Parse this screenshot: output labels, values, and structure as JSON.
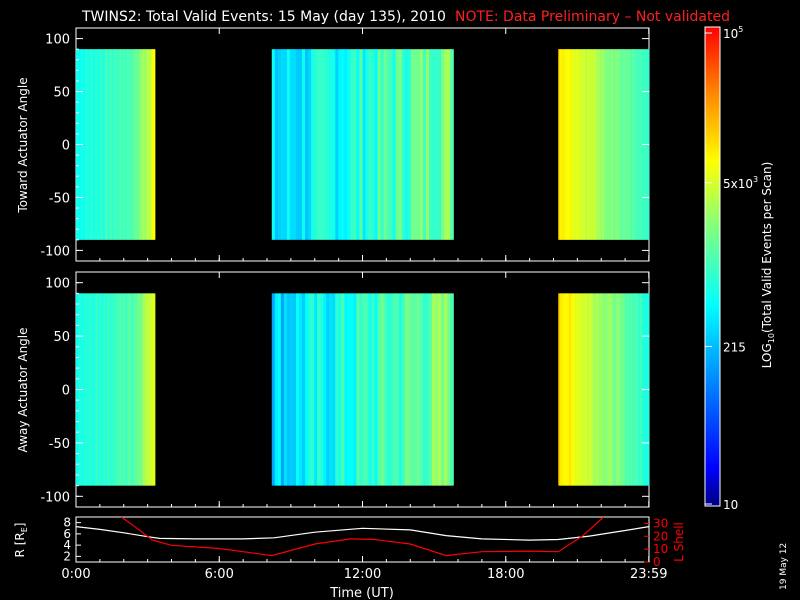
{
  "header": {
    "title": "TWINS2: Total Valid Events: 15 May (day 135), 2010",
    "note": "NOTE: Data Preliminary – Not validated",
    "note_color": "#ff2020"
  },
  "side_stamp": "19 May 12",
  "colorbar": {
    "label_prefix": "LOG",
    "label_sub": "10",
    "label_suffix": "(Total Valid Events per Scan)",
    "ticks": [
      {
        "value": 10,
        "label": "10"
      },
      {
        "value": 215,
        "label": "215"
      },
      {
        "base": "5x10",
        "exp": "3",
        "value": 5000
      },
      {
        "base": "10",
        "exp": "5",
        "value": 100000
      }
    ],
    "colors": [
      "#00007f",
      "#0000ff",
      "#0080ff",
      "#00ffff",
      "#80ff80",
      "#ffff00",
      "#ff8000",
      "#ff0000"
    ]
  },
  "chart_data": [
    {
      "type": "heatmap",
      "name": "toward",
      "ylabel": "Toward Actuator Angle",
      "ylim": [
        -110,
        110
      ],
      "yticks": [
        "100",
        "50",
        "0",
        "-50",
        "-100"
      ],
      "xlim": [
        0,
        24
      ],
      "xticks": [
        "0:00",
        "6:00",
        "12:00",
        "18:00",
        "23:59"
      ],
      "data_range_angle": [
        -90,
        90
      ],
      "data_blocks": [
        {
          "start_ut": 0.0,
          "end_ut": 3.3
        },
        {
          "start_ut": 8.2,
          "end_ut": 15.8
        },
        {
          "start_ut": 20.2,
          "end_ut": 23.99
        }
      ]
    },
    {
      "type": "heatmap",
      "name": "away",
      "ylabel": "Away Actuator Angle",
      "ylim": [
        -110,
        110
      ],
      "yticks": [
        "100",
        "50",
        "0",
        "-50",
        "-100"
      ],
      "xlim": [
        0,
        24
      ],
      "xticks": [
        "0:00",
        "6:00",
        "12:00",
        "18:00",
        "23:59"
      ],
      "data_range_angle": [
        -90,
        90
      ],
      "data_blocks": [
        {
          "start_ut": 0.0,
          "end_ut": 3.3
        },
        {
          "start_ut": 8.2,
          "end_ut": 15.8
        },
        {
          "start_ut": 20.2,
          "end_ut": 23.99
        }
      ]
    },
    {
      "type": "line",
      "name": "orbit",
      "xlabel": "Time (UT)",
      "xticks": [
        "0:00",
        "6:00",
        "12:00",
        "18:00",
        "23:59"
      ],
      "ylabel_left": "R [R",
      "ylabel_left_sub": "E",
      "ylabel_left_end": "]",
      "ylim_left": [
        1,
        9
      ],
      "yticks_left": [
        "2",
        "4",
        "6",
        "8"
      ],
      "ylabel_right": "L Shell",
      "ylim_right": [
        0,
        35
      ],
      "yticks_right": [
        "0",
        "10",
        "20",
        "30"
      ],
      "series": [
        {
          "axis": "left",
          "color": "#ffffff",
          "x": [
            0,
            1,
            2,
            3,
            3.5,
            5,
            7,
            8.3,
            10,
            12,
            14,
            15.5,
            17,
            19,
            20.2,
            21.5,
            23,
            23.99
          ],
          "y": [
            7.3,
            6.8,
            6.2,
            5.5,
            5.2,
            5.1,
            5.1,
            5.3,
            6.3,
            7.0,
            6.7,
            5.7,
            5.1,
            4.9,
            5.0,
            5.6,
            6.6,
            7.3
          ]
        },
        {
          "axis": "right",
          "color": "#ff0000",
          "x": [
            1.9,
            2.5,
            3.2,
            4,
            6,
            8.2,
            10,
            11.5,
            12.5,
            14,
            15.5,
            17,
            19,
            20.2,
            21.2,
            22.1
          ],
          "y": [
            35,
            27,
            17,
            13,
            10.5,
            5,
            14,
            18,
            17.5,
            14,
            5,
            8,
            8.5,
            8,
            20,
            35
          ]
        }
      ]
    }
  ]
}
